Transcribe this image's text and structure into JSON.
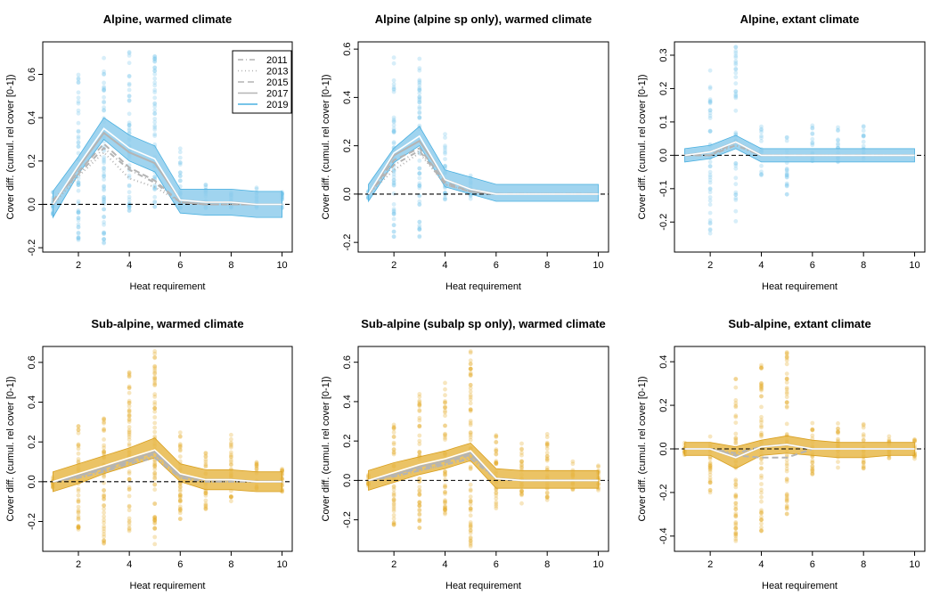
{
  "colors": {
    "alpine_fill": "#8fcdec",
    "alpine_line": "#4ab0e0",
    "alpine_point": "#7cc6ea",
    "subalpine_fill": "#e8b84a",
    "subalpine_line": "#d9a020",
    "subalpine_point": "#e6ad2a",
    "gray_line": "#b4b4b4",
    "zero_line": "#000000"
  },
  "legend": {
    "entries": [
      {
        "label": "2011",
        "style": "dotdash"
      },
      {
        "label": "2013",
        "style": "dotted"
      },
      {
        "label": "2015",
        "style": "dashed"
      },
      {
        "label": "2017",
        "style": "solid"
      },
      {
        "label": "2019",
        "style": "blue-solid"
      }
    ]
  },
  "chart_data": [
    {
      "type": "line",
      "title": "Alpine, warmed climate",
      "xlabel": "Heat requirement",
      "ylabel": "Cover diff. (cumul. rel cover [0-1])",
      "group": "alpine",
      "legend": true,
      "xlim": [
        0.6,
        10.4
      ],
      "ylim": [
        -0.22,
        0.75
      ],
      "xticks": [
        2,
        4,
        6,
        8,
        10
      ],
      "yticks": [
        -0.2,
        0.0,
        0.2,
        0.4,
        0.6
      ],
      "ytick_labels": [
        "-0.2",
        "0.0",
        "0.2",
        "0.4",
        "0.6"
      ],
      "x": [
        1,
        2,
        3,
        4,
        5,
        6,
        7,
        8,
        9,
        10
      ],
      "band_lower": [
        -0.06,
        0.14,
        0.3,
        0.2,
        0.15,
        -0.04,
        -0.05,
        -0.05,
        -0.06,
        -0.06
      ],
      "band_upper": [
        0.06,
        0.22,
        0.4,
        0.32,
        0.27,
        0.07,
        0.07,
        0.07,
        0.06,
        0.06
      ],
      "series": [
        {
          "name": "2011",
          "values": [
            0.02,
            0.14,
            0.26,
            0.16,
            0.1,
            0.01,
            0.0,
            0.0,
            0.0,
            0.0
          ]
        },
        {
          "name": "2013",
          "values": [
            0.0,
            0.13,
            0.24,
            0.12,
            0.08,
            0.01,
            0.0,
            0.0,
            0.0,
            0.0
          ]
        },
        {
          "name": "2015",
          "values": [
            0.01,
            0.15,
            0.28,
            0.17,
            0.11,
            0.01,
            0.0,
            0.0,
            0.0,
            0.0
          ]
        },
        {
          "name": "2017",
          "values": [
            0.0,
            0.17,
            0.33,
            0.24,
            0.19,
            0.02,
            0.01,
            0.01,
            0.0,
            0.0
          ]
        },
        {
          "name": "2019",
          "values": [
            0.0,
            0.18,
            0.35,
            0.26,
            0.21,
            0.02,
            0.01,
            0.01,
            0.0,
            0.0
          ]
        }
      ],
      "scatter_range": [
        [
          -0.05,
          0.07
        ],
        [
          -0.17,
          0.6
        ],
        [
          -0.18,
          0.69
        ],
        [
          -0.03,
          0.73
        ],
        [
          -0.03,
          0.7
        ],
        [
          -0.02,
          0.26
        ],
        [
          -0.02,
          0.1
        ],
        [
          -0.02,
          0.09
        ],
        [
          -0.02,
          0.08
        ],
        [
          -0.02,
          0.07
        ]
      ]
    },
    {
      "type": "line",
      "title": "Alpine (alpine sp only), warmed climate",
      "xlabel": "Heat requirement",
      "ylabel": "Cover diff. (cumul. rel cover [0-1])",
      "group": "alpine",
      "legend": false,
      "xlim": [
        0.6,
        10.4
      ],
      "ylim": [
        -0.24,
        0.63
      ],
      "xticks": [
        2,
        4,
        6,
        8,
        10
      ],
      "yticks": [
        -0.2,
        0.0,
        0.2,
        0.4,
        0.6
      ],
      "ytick_labels": [
        "-0.2",
        "0.0",
        "0.2",
        "0.4",
        "0.6"
      ],
      "x": [
        1,
        2,
        3,
        4,
        5,
        6,
        7,
        8,
        9,
        10
      ],
      "band_lower": [
        -0.03,
        0.13,
        0.2,
        0.03,
        0.0,
        -0.03,
        -0.03,
        -0.03,
        -0.03,
        -0.03
      ],
      "band_upper": [
        0.04,
        0.19,
        0.28,
        0.1,
        0.07,
        0.04,
        0.04,
        0.04,
        0.04,
        0.04
      ],
      "series": [
        {
          "name": "2011",
          "values": [
            0.0,
            0.12,
            0.18,
            0.04,
            0.01,
            0.0,
            0.0,
            0.0,
            0.0,
            0.0
          ]
        },
        {
          "name": "2013",
          "values": [
            0.0,
            0.1,
            0.17,
            0.04,
            0.01,
            0.0,
            0.0,
            0.0,
            0.0,
            0.0
          ]
        },
        {
          "name": "2015",
          "values": [
            0.0,
            0.14,
            0.19,
            0.05,
            0.01,
            0.0,
            0.0,
            0.0,
            0.0,
            0.0
          ]
        },
        {
          "name": "2017",
          "values": [
            0.0,
            0.16,
            0.22,
            0.06,
            0.02,
            0.0,
            0.0,
            0.0,
            0.0,
            0.0
          ]
        },
        {
          "name": "2019",
          "values": [
            0.0,
            0.17,
            0.24,
            0.06,
            0.02,
            0.0,
            0.0,
            0.0,
            0.0,
            0.0
          ]
        }
      ],
      "scatter_range": [
        [
          -0.02,
          0.02
        ],
        [
          -0.18,
          0.61
        ],
        [
          -0.2,
          0.59
        ],
        [
          -0.05,
          0.25
        ],
        [
          -0.02,
          0.08
        ],
        [
          0,
          0
        ],
        [
          0,
          0
        ],
        [
          0,
          0
        ],
        [
          0,
          0
        ],
        [
          0,
          0
        ]
      ]
    },
    {
      "type": "line",
      "title": "Alpine, extant climate",
      "xlabel": "Heat requirement",
      "ylabel": "Cover diff. (cumul. rel cover [0-1])",
      "group": "alpine",
      "legend": false,
      "xlim": [
        0.6,
        10.4
      ],
      "ylim": [
        -0.29,
        0.34
      ],
      "xticks": [
        2,
        4,
        6,
        8,
        10
      ],
      "yticks": [
        -0.2,
        -0.1,
        0.0,
        0.1,
        0.2,
        0.3
      ],
      "ytick_labels": [
        "-0.2",
        "-0.1",
        "0.0",
        "0.1",
        "0.2",
        "0.3"
      ],
      "x": [
        1,
        2,
        3,
        4,
        5,
        6,
        7,
        8,
        9,
        10
      ],
      "band_lower": [
        -0.02,
        -0.01,
        0.02,
        -0.02,
        -0.02,
        -0.02,
        -0.02,
        -0.02,
        -0.02,
        -0.02
      ],
      "band_upper": [
        0.02,
        0.03,
        0.06,
        0.02,
        0.02,
        0.02,
        0.02,
        0.02,
        0.02,
        0.02
      ],
      "series": [
        {
          "name": "2011",
          "values": [
            0.0,
            0.0,
            0.03,
            0.0,
            0.0,
            0.0,
            0.0,
            0.0,
            0.0,
            0.0
          ]
        },
        {
          "name": "2013",
          "values": [
            0.0,
            0.01,
            0.03,
            0.0,
            0.0,
            0.0,
            0.0,
            0.0,
            0.0,
            0.0
          ]
        },
        {
          "name": "2015",
          "values": [
            0.0,
            0.0,
            0.04,
            0.0,
            0.0,
            0.0,
            0.0,
            0.0,
            0.0,
            0.0
          ]
        },
        {
          "name": "2017",
          "values": [
            0.0,
            0.01,
            0.04,
            0.0,
            0.0,
            0.0,
            0.0,
            0.0,
            0.0,
            0.0
          ]
        },
        {
          "name": "2019",
          "values": [
            0.0,
            0.01,
            0.04,
            0.0,
            0.0,
            0.0,
            0.0,
            0.0,
            0.0,
            0.0
          ]
        }
      ],
      "scatter_range": [
        [
          0,
          0
        ],
        [
          -0.24,
          0.27
        ],
        [
          -0.2,
          0.33
        ],
        [
          -0.06,
          0.09
        ],
        [
          -0.12,
          0.08
        ],
        [
          -0.02,
          0.09
        ],
        [
          -0.02,
          0.09
        ],
        [
          -0.02,
          0.09
        ],
        [
          0,
          0
        ],
        [
          0,
          0
        ]
      ]
    },
    {
      "type": "line",
      "title": "Sub-alpine, warmed climate",
      "xlabel": "Heat requirement",
      "ylabel": "Cover diff. (cumul. rel cover [0-1])",
      "group": "subalpine",
      "legend": false,
      "xlim": [
        0.6,
        10.4
      ],
      "ylim": [
        -0.35,
        0.68
      ],
      "xticks": [
        2,
        4,
        6,
        8,
        10
      ],
      "yticks": [
        -0.2,
        0.0,
        0.2,
        0.4,
        0.6
      ],
      "ytick_labels": [
        "-0.2",
        "0.0",
        "0.2",
        "0.4",
        "0.6"
      ],
      "x": [
        1,
        2,
        3,
        4,
        5,
        6,
        7,
        8,
        9,
        10
      ],
      "band_lower": [
        -0.05,
        -0.01,
        0.04,
        0.08,
        0.12,
        0.0,
        -0.04,
        -0.04,
        -0.05,
        -0.05
      ],
      "band_upper": [
        0.05,
        0.09,
        0.13,
        0.17,
        0.22,
        0.09,
        0.06,
        0.06,
        0.05,
        0.05
      ],
      "series": [
        {
          "name": "2011",
          "values": [
            0.0,
            0.02,
            0.05,
            0.09,
            0.12,
            0.02,
            0.0,
            0.0,
            0.0,
            0.0
          ]
        },
        {
          "name": "2013",
          "values": [
            0.0,
            0.02,
            0.05,
            0.1,
            0.13,
            0.02,
            0.0,
            0.0,
            0.0,
            0.0
          ]
        },
        {
          "name": "2015",
          "values": [
            0.0,
            0.03,
            0.06,
            0.1,
            0.14,
            0.03,
            0.01,
            0.01,
            0.0,
            0.0
          ]
        },
        {
          "name": "2017",
          "values": [
            0.0,
            0.03,
            0.07,
            0.11,
            0.15,
            0.03,
            0.01,
            0.01,
            0.0,
            0.0
          ]
        },
        {
          "name": "2019",
          "values": [
            0.0,
            0.04,
            0.08,
            0.12,
            0.16,
            0.04,
            0.01,
            0.01,
            0.0,
            0.0
          ]
        }
      ],
      "scatter_range": [
        [
          -0.03,
          0.03
        ],
        [
          -0.24,
          0.3
        ],
        [
          -0.34,
          0.4
        ],
        [
          -0.25,
          0.55
        ],
        [
          -0.32,
          0.66
        ],
        [
          -0.2,
          0.27
        ],
        [
          -0.14,
          0.2
        ],
        [
          -0.1,
          0.25
        ],
        [
          -0.05,
          0.1
        ],
        [
          -0.05,
          0.08
        ]
      ]
    },
    {
      "type": "line",
      "title": "Sub-alpine (subalp sp only), warmed climate",
      "xlabel": "Heat requirement",
      "ylabel": "Cover diff. (cumul. rel cover [0-1])",
      "group": "subalpine",
      "legend": false,
      "xlim": [
        0.6,
        10.4
      ],
      "ylim": [
        -0.36,
        0.68
      ],
      "xticks": [
        2,
        4,
        6,
        8,
        10
      ],
      "yticks": [
        -0.2,
        0.0,
        0.2,
        0.4,
        0.6
      ],
      "ytick_labels": [
        "-0.2",
        "0.0",
        "0.2",
        "0.4",
        "0.6"
      ],
      "x": [
        1,
        2,
        3,
        4,
        5,
        6,
        7,
        8,
        9,
        10
      ],
      "band_lower": [
        -0.05,
        -0.01,
        0.03,
        0.06,
        0.1,
        -0.04,
        -0.04,
        -0.04,
        -0.04,
        -0.04
      ],
      "band_upper": [
        0.05,
        0.09,
        0.12,
        0.15,
        0.19,
        0.06,
        0.05,
        0.05,
        0.05,
        0.05
      ],
      "series": [
        {
          "name": "2011",
          "values": [
            0.0,
            0.02,
            0.05,
            0.08,
            0.11,
            0.01,
            0.0,
            0.0,
            0.0,
            0.0
          ]
        },
        {
          "name": "2013",
          "values": [
            0.0,
            0.02,
            0.05,
            0.08,
            0.12,
            0.01,
            0.0,
            0.0,
            0.0,
            0.0
          ]
        },
        {
          "name": "2015",
          "values": [
            0.0,
            0.03,
            0.06,
            0.09,
            0.13,
            0.01,
            0.0,
            0.0,
            0.0,
            0.0
          ]
        },
        {
          "name": "2017",
          "values": [
            0.0,
            0.03,
            0.07,
            0.1,
            0.14,
            0.01,
            0.0,
            0.0,
            0.0,
            0.0
          ]
        },
        {
          "name": "2019",
          "values": [
            0.0,
            0.04,
            0.08,
            0.11,
            0.15,
            0.01,
            0.0,
            0.0,
            0.0,
            0.0
          ]
        }
      ],
      "scatter_range": [
        [
          -0.03,
          0.03
        ],
        [
          -0.24,
          0.3
        ],
        [
          -0.27,
          0.45
        ],
        [
          -0.2,
          0.5
        ],
        [
          -0.35,
          0.66
        ],
        [
          -0.15,
          0.26
        ],
        [
          -0.12,
          0.2
        ],
        [
          -0.1,
          0.25
        ],
        [
          -0.05,
          0.1
        ],
        [
          -0.05,
          0.08
        ]
      ]
    },
    {
      "type": "line",
      "title": "Sub-alpine, extant climate",
      "xlabel": "Heat requirement",
      "ylabel": "Cover diff. (cumul. rel cover [0-1])",
      "group": "subalpine",
      "legend": false,
      "xlim": [
        0.6,
        10.4
      ],
      "ylim": [
        -0.47,
        0.47
      ],
      "xticks": [
        2,
        4,
        6,
        8,
        10
      ],
      "yticks": [
        -0.4,
        -0.2,
        0.0,
        0.2,
        0.4
      ],
      "ytick_labels": [
        "-0.4",
        "-0.2",
        "0.0",
        "0.2",
        "0.4"
      ],
      "x": [
        1,
        2,
        3,
        4,
        5,
        6,
        7,
        8,
        9,
        10
      ],
      "band_lower": [
        -0.03,
        -0.03,
        -0.09,
        -0.03,
        -0.02,
        -0.03,
        -0.04,
        -0.04,
        -0.03,
        -0.03
      ],
      "band_upper": [
        0.03,
        0.03,
        0.01,
        0.04,
        0.06,
        0.04,
        0.03,
        0.03,
        0.03,
        0.03
      ],
      "series": [
        {
          "name": "2011",
          "values": [
            0.0,
            0.0,
            -0.02,
            0.01,
            0.02,
            0.0,
            0.0,
            0.0,
            0.0,
            0.0
          ]
        },
        {
          "name": "2013",
          "values": [
            0.0,
            0.0,
            -0.03,
            0.01,
            0.02,
            0.0,
            0.0,
            0.0,
            0.0,
            0.0
          ]
        },
        {
          "name": "2015",
          "values": [
            0.0,
            0.0,
            -0.03,
            -0.04,
            -0.04,
            0.0,
            0.0,
            0.0,
            0.0,
            0.0
          ]
        },
        {
          "name": "2017",
          "values": [
            0.0,
            0.0,
            -0.04,
            0.01,
            0.02,
            0.0,
            0.0,
            0.0,
            0.0,
            0.0
          ]
        },
        {
          "name": "2019",
          "values": [
            0.0,
            0.0,
            -0.04,
            0.01,
            0.02,
            0.0,
            0.0,
            0.0,
            0.0,
            0.0
          ]
        }
      ],
      "scatter_range": [
        [
          -0.03,
          0.03
        ],
        [
          -0.2,
          0.1
        ],
        [
          -0.44,
          0.33
        ],
        [
          -0.38,
          0.43
        ],
        [
          -0.3,
          0.45
        ],
        [
          -0.12,
          0.16
        ],
        [
          -0.1,
          0.12
        ],
        [
          -0.1,
          0.12
        ],
        [
          -0.05,
          0.06
        ],
        [
          -0.05,
          0.05
        ]
      ]
    }
  ]
}
